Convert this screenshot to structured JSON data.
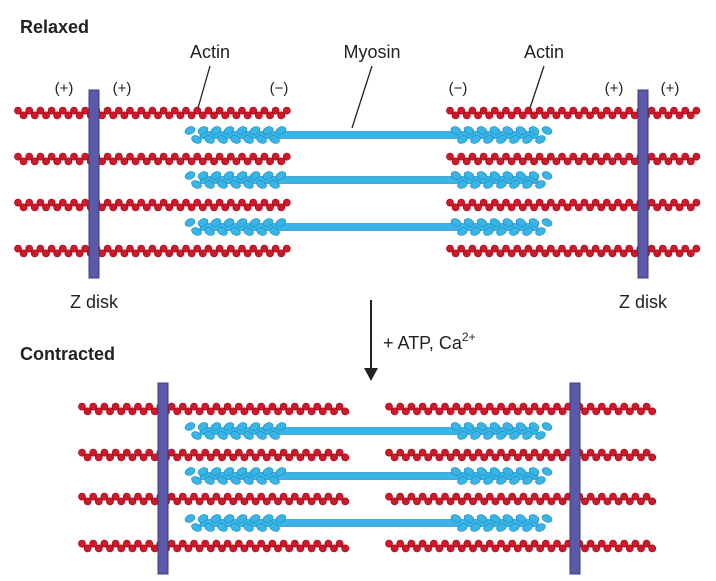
{
  "sections": {
    "relaxed": "Relaxed",
    "contracted": "Contracted"
  },
  "labels": {
    "actin_left": "Actin",
    "myosin": "Myosin",
    "actin_right": "Actin",
    "z_disk_left": "Z disk",
    "z_disk_right": "Z disk"
  },
  "polarity": {
    "plus": "(+)",
    "minus": "(−)"
  },
  "transition": {
    "text": "+ ATP, Ca",
    "superscript": "2+"
  },
  "colors": {
    "actin": "#d0182a",
    "actin_dark": "#8e0d18",
    "myosin": "#38b4e6",
    "myosin_dark": "#1d86b8",
    "z_disk": "#5a5aa8",
    "text": "#222222"
  }
}
